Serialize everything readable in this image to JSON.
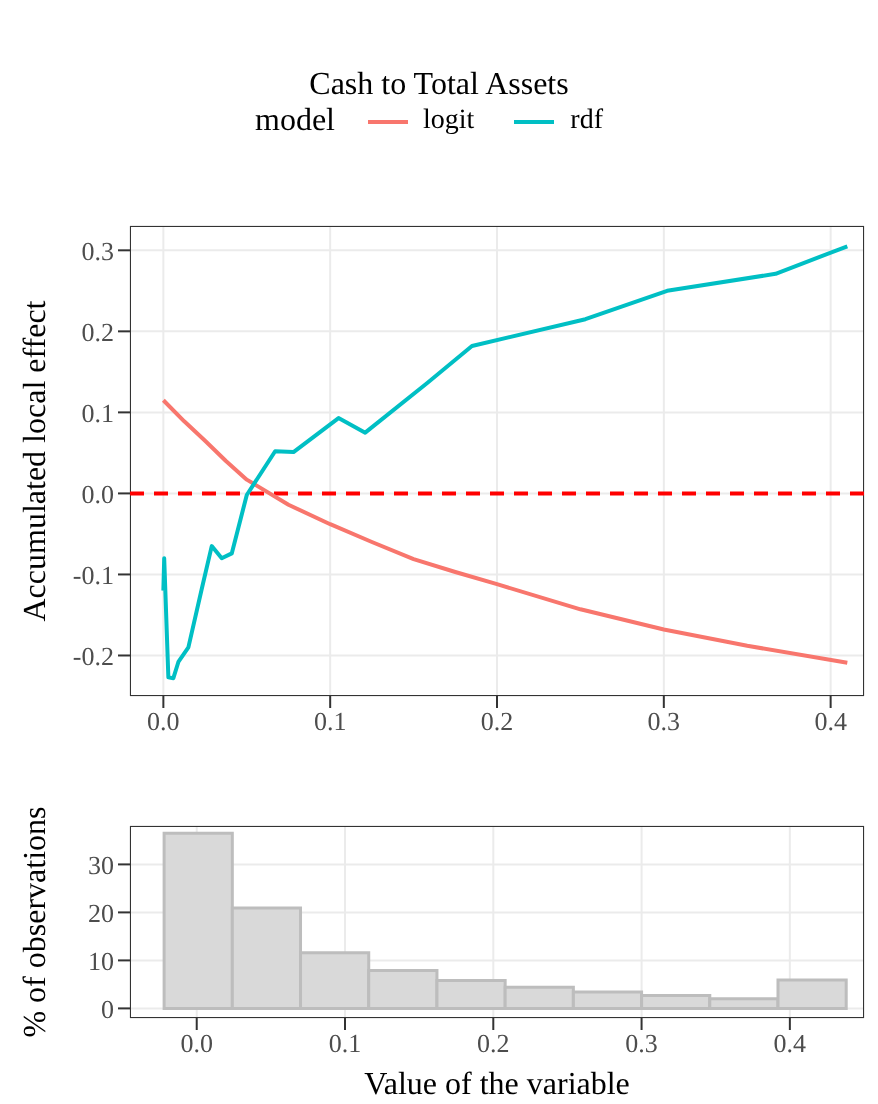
{
  "chart_data": [
    {
      "type": "line",
      "title": "Cash to Total Assets",
      "ylabel": "Accumulated local effect",
      "legend_title": "model",
      "legend": "top",
      "grid": true,
      "marker": "none",
      "line_style": "solid",
      "xlim": [
        -0.02,
        0.42
      ],
      "xticks": [
        {
          "value": 0,
          "label": "0.0"
        },
        0.1,
        0.2,
        0.3,
        0.4
      ],
      "ylim": [
        -0.25,
        0.33
      ],
      "yticks": [
        -0.2,
        -0.1,
        {
          "value": 0,
          "label": "0.0"
        },
        0.1,
        0.2,
        0.3
      ],
      "ref_lines": [
        {
          "axis": "y",
          "value": 0,
          "color": "#ff0000",
          "line_style": "dashed"
        }
      ],
      "series": [
        {
          "name": "logit",
          "color": "#f8766d",
          "x": [
            0,
            0.0125,
            0.025,
            0.0375,
            0.05,
            0.075,
            0.1,
            0.125,
            0.15,
            0.175,
            0.2,
            0.25,
            0.3,
            0.35,
            0.41
          ],
          "values": [
            0.115,
            0.089,
            0.065,
            0.04,
            0.017,
            -0.014,
            -0.038,
            -0.06,
            -0.081,
            -0.097,
            -0.112,
            -0.143,
            -0.168,
            -0.188,
            -0.209
          ]
        },
        {
          "name": "rdf",
          "color": "#00bfc4",
          "x": [
            0,
            0.0005,
            0.003,
            0.006,
            0.009,
            0.015,
            0.023,
            0.029,
            0.035,
            0.041,
            0.05,
            0.067,
            0.078,
            0.105,
            0.121,
            0.158,
            0.185,
            0.253,
            0.302,
            0.367,
            0.41
          ],
          "values": [
            -0.12,
            -0.08,
            -0.227,
            -0.228,
            -0.208,
            -0.19,
            -0.118,
            -0.065,
            -0.08,
            -0.074,
            -0.002,
            0.052,
            0.051,
            0.093,
            0.075,
            0.136,
            0.182,
            0.215,
            0.25,
            0.271,
            0.305
          ]
        }
      ]
    },
    {
      "type": "histogram",
      "xlabel": "Value of the variable",
      "ylabel": "% of observations",
      "grid": true,
      "color": "#d9d9d9",
      "xlim": [
        -0.045,
        0.45
      ],
      "xticks": [
        {
          "value": 0,
          "label": "0.0"
        },
        0.1,
        0.2,
        0.3,
        0.4
      ],
      "ylim": [
        -2,
        38
      ],
      "yticks": [
        0,
        10,
        20,
        30
      ],
      "bins": [
        -0.022,
        0.024,
        0.07,
        0.116,
        0.162,
        0.208,
        0.254,
        0.3,
        0.346,
        0.392,
        0.438
      ],
      "values": [
        36.5,
        20.9,
        11.6,
        7.9,
        5.8,
        4.4,
        3.4,
        2.7,
        2.0,
        5.9
      ]
    }
  ]
}
